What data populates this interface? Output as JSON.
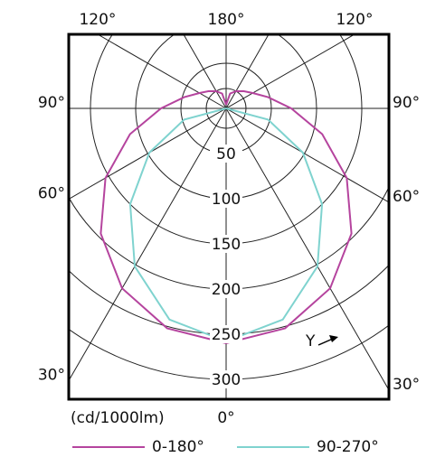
{
  "chart_data": {
    "type": "polar",
    "unit_label": "(cd/1000lm)",
    "annotation": "Y",
    "angles": [
      0,
      15,
      30,
      45,
      60,
      75,
      90,
      105,
      120,
      135,
      150,
      165,
      180
    ],
    "series": [
      {
        "name": "0-180°",
        "color": "#b5449e",
        "values": [
          260,
          252,
          230,
          196,
          154,
          110,
          72,
          48,
          34,
          27,
          22,
          17,
          4
        ]
      },
      {
        "name": "90-270°",
        "color": "#7fd3cf",
        "values": [
          258,
          242,
          202,
          150,
          98,
          48,
          0,
          0,
          0,
          0,
          0,
          0,
          0
        ]
      }
    ],
    "rlim": [
      0,
      300
    ],
    "rticks": [
      50,
      100,
      150,
      200,
      250,
      300
    ],
    "thetaticks": [
      {
        "value": 0,
        "label": "0°"
      },
      {
        "value": 30,
        "label": "30°"
      },
      {
        "value": 60,
        "label": "60°"
      },
      {
        "value": 90,
        "label": "90°"
      },
      {
        "value": 120,
        "label": "120°"
      },
      {
        "value": 180,
        "label": "180°"
      }
    ]
  }
}
